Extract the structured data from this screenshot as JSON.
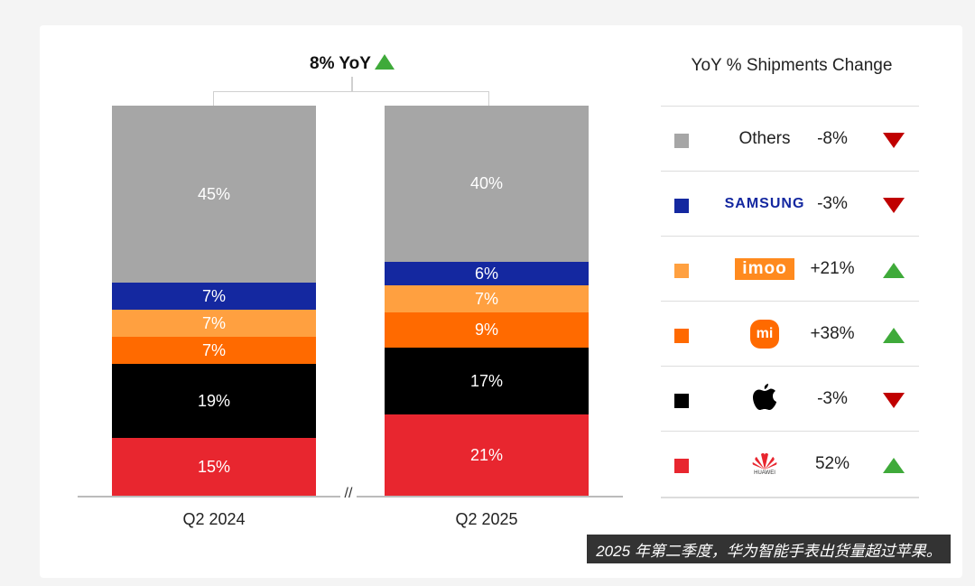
{
  "chart_data": {
    "type": "bar",
    "stacked": true,
    "categories": [
      "Q2 2024",
      "Q2 2025"
    ],
    "segment_order_bottom_to_top": [
      "Huawei",
      "Apple",
      "Xiaomi",
      "imoo",
      "Samsung",
      "Others"
    ],
    "series": [
      {
        "name": "Huawei",
        "color": "#e8262f",
        "values": [
          15,
          21
        ]
      },
      {
        "name": "Apple",
        "color": "#000000",
        "values": [
          19,
          17
        ]
      },
      {
        "name": "Xiaomi",
        "color": "#ff6a00",
        "values": [
          7,
          9
        ]
      },
      {
        "name": "imoo",
        "color": "#ffa040",
        "values": [
          7,
          7
        ]
      },
      {
        "name": "Samsung",
        "color": "#1428a0",
        "values": [
          7,
          6
        ]
      },
      {
        "name": "Others",
        "color": "#a6a6a6",
        "values": [
          45,
          40
        ]
      }
    ],
    "ylim": [
      0,
      100
    ],
    "annotation": "8% YoY",
    "annotation_trend": "up",
    "axis_break": "//"
  },
  "legend": {
    "title": "YoY % Shipments Change",
    "rows": [
      {
        "brand": "Others",
        "change": "-8%",
        "trend": "down",
        "color": "#a6a6a6"
      },
      {
        "brand": "SAMSUNG",
        "change": "-3%",
        "trend": "down",
        "color": "#1428a0"
      },
      {
        "brand": "imoo",
        "change": "+21%",
        "trend": "up",
        "color": "#ffa040"
      },
      {
        "brand": "mi",
        "change": "+38%",
        "trend": "up",
        "color": "#ff6a00"
      },
      {
        "brand": "Apple",
        "change": "-3%",
        "trend": "down",
        "color": "#000000"
      },
      {
        "brand": "HUAWEI",
        "change": "52%",
        "trend": "up",
        "color": "#e8262f"
      }
    ]
  },
  "caption": "2025 年第二季度，华为智能手表出货量超过苹果。"
}
